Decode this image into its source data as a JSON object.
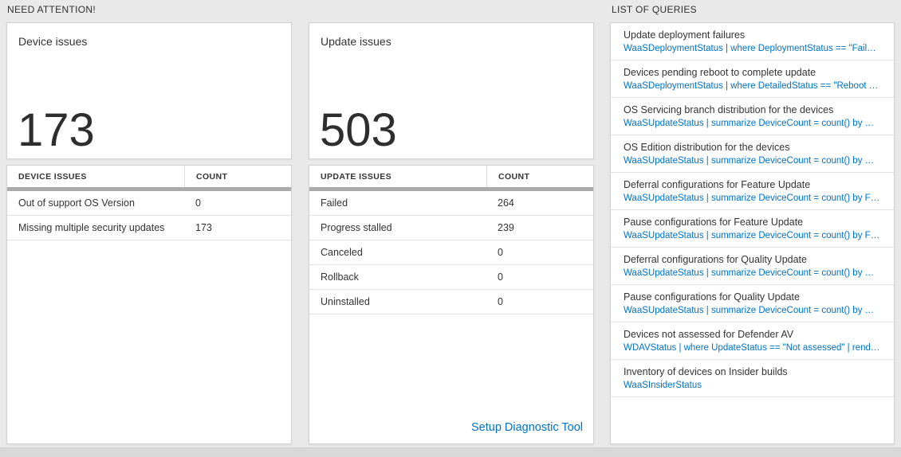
{
  "colors": {
    "accent": "#0072c6"
  },
  "sections": {
    "need_attention_label": "NEED ATTENTION!",
    "queries_label": "LIST OF QUERIES"
  },
  "device_issues": {
    "title": "Device issues",
    "count": "173",
    "table_headers": {
      "name": "DEVICE ISSUES",
      "count": "COUNT"
    },
    "rows": [
      {
        "label": "Out of support OS Version",
        "value": "0"
      },
      {
        "label": "Missing multiple security updates",
        "value": "173"
      }
    ]
  },
  "update_issues": {
    "title": "Update issues",
    "count": "503",
    "table_headers": {
      "name": "UPDATE ISSUES",
      "count": "COUNT"
    },
    "rows": [
      {
        "label": "Failed",
        "value": "264"
      },
      {
        "label": "Progress stalled",
        "value": "239"
      },
      {
        "label": "Canceled",
        "value": "0"
      },
      {
        "label": "Rollback",
        "value": "0"
      },
      {
        "label": "Uninstalled",
        "value": "0"
      }
    ],
    "footer_link": "Setup Diagnostic Tool"
  },
  "queries": {
    "items": [
      {
        "title": "Update deployment failures",
        "query": "WaaSDeploymentStatus | where DeploymentStatus == \"Failed\" |..."
      },
      {
        "title": "Devices pending reboot to complete update",
        "query": "WaaSDeploymentStatus | where DetailedStatus == \"Reboot pend..."
      },
      {
        "title": "OS Servicing branch distribution for the devices",
        "query": "WaaSUpdateStatus | summarize DeviceCount = count() by OSSer..."
      },
      {
        "title": "OS Edition distribution for the devices",
        "query": "WaaSUpdateStatus | summarize DeviceCount = count() by OSEdit..."
      },
      {
        "title": "Deferral configurations for Feature Update",
        "query": "WaaSUpdateStatus | summarize DeviceCount = count() by Featur..."
      },
      {
        "title": "Pause configurations for Feature Update",
        "query": "WaaSUpdateStatus | summarize DeviceCount = count() by Featur..."
      },
      {
        "title": "Deferral configurations for Quality Update",
        "query": "WaaSUpdateStatus | summarize DeviceCount = count() by Qualit..."
      },
      {
        "title": "Pause configurations for Quality Update",
        "query": "WaaSUpdateStatus | summarize DeviceCount = count() by Qualit..."
      },
      {
        "title": "Devices not assessed for Defender AV",
        "query": "WDAVStatus | where UpdateStatus == \"Not assessed\" | render ta..."
      },
      {
        "title": "Inventory of devices on Insider builds",
        "query": "WaaSInsiderStatus"
      }
    ]
  }
}
